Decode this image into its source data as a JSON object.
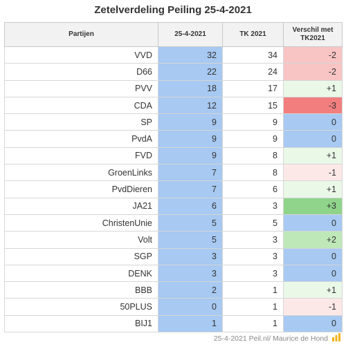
{
  "title": "Zetelverdeling Peiling 25-4-2021",
  "headers": {
    "party": "Partijen",
    "current": "25-4-2021",
    "tk": "TK 2021",
    "diff": "Verschil met TK2021"
  },
  "rows": [
    {
      "party": "VVD",
      "current": "32",
      "tk": "34",
      "diff": "-2"
    },
    {
      "party": "D66",
      "current": "22",
      "tk": "24",
      "diff": "-2"
    },
    {
      "party": "PVV",
      "current": "18",
      "tk": "17",
      "diff": "+1"
    },
    {
      "party": "CDA",
      "current": "12",
      "tk": "15",
      "diff": "-3"
    },
    {
      "party": "SP",
      "current": "9",
      "tk": "9",
      "diff": "0"
    },
    {
      "party": "PvdA",
      "current": "9",
      "tk": "9",
      "diff": "0"
    },
    {
      "party": "FVD",
      "current": "9",
      "tk": "8",
      "diff": "+1"
    },
    {
      "party": "GroenLinks",
      "current": "7",
      "tk": "8",
      "diff": "-1"
    },
    {
      "party": "PvdDieren",
      "current": "7",
      "tk": "6",
      "diff": "+1"
    },
    {
      "party": "JA21",
      "current": "6",
      "tk": "3",
      "diff": "+3"
    },
    {
      "party": "ChristenUnie",
      "current": "5",
      "tk": "5",
      "diff": "0"
    },
    {
      "party": "Volt",
      "current": "5",
      "tk": "3",
      "diff": "+2"
    },
    {
      "party": "SGP",
      "current": "3",
      "tk": "3",
      "diff": "0"
    },
    {
      "party": "DENK",
      "current": "3",
      "tk": "3",
      "diff": "0"
    },
    {
      "party": "BBB",
      "current": "2",
      "tk": "1",
      "diff": "+1"
    },
    {
      "party": "50PLUS",
      "current": "0",
      "tk": "1",
      "diff": "-1"
    },
    {
      "party": "BIJ1",
      "current": "1",
      "tk": "1",
      "diff": "0"
    }
  ],
  "colors": {
    "current_col": "#a7c9f2",
    "zero": "#a7c9f2",
    "plus1": "#eaf8e8",
    "plus2": "#bfe8b8",
    "plus3": "#8fd48a",
    "minus1": "#fde8e8",
    "minus2": "#f8c4c4",
    "minus3": "#f27e7e"
  },
  "footer": "25-4-2021 Peil.nl/ Maurice de Hond"
}
